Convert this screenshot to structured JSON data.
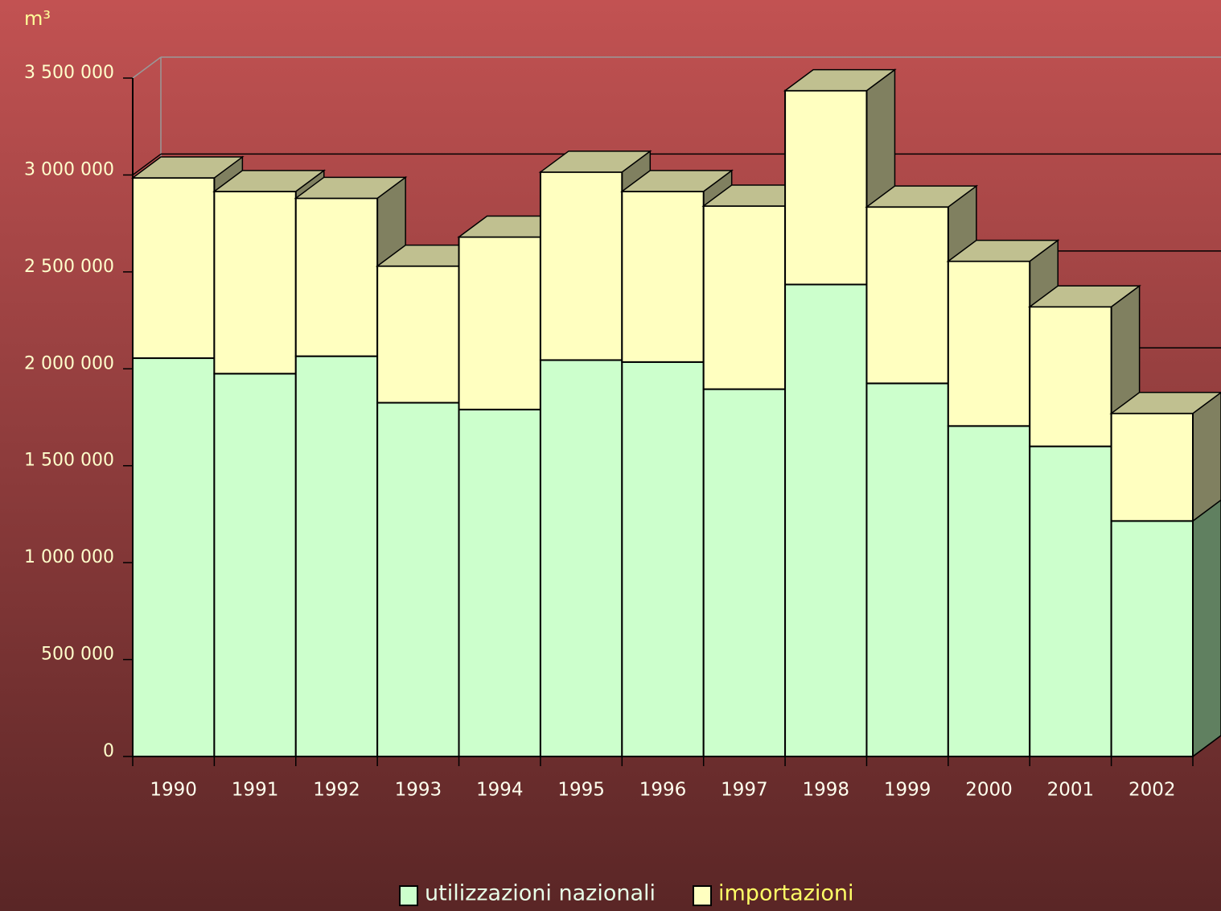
{
  "chart_data": {
    "type": "bar3d_stacked",
    "y_label": "m³",
    "categories": [
      "1990",
      "1991",
      "1992",
      "1993",
      "1994",
      "1995",
      "1996",
      "1997",
      "1998",
      "1999",
      "2000",
      "2001",
      "2002"
    ],
    "series": [
      {
        "name": "utilizzazioni nazionali",
        "color": "#ccffcc",
        "side_color": "#608060",
        "values": [
          2055000,
          1975000,
          2065000,
          1825000,
          1790000,
          2045000,
          2035000,
          1895000,
          2435000,
          1925000,
          1705000,
          1600000,
          1215000
        ]
      },
      {
        "name": "importazioni",
        "color": "#ffffc0",
        "side_color": "#808060",
        "values": [
          930000,
          940000,
          815000,
          705000,
          890000,
          970000,
          880000,
          945000,
          1000000,
          910000,
          850000,
          720000,
          555000
        ]
      }
    ],
    "top_color": "#c0c090",
    "ylim": [
      0,
      3500000
    ],
    "yticks": [
      0,
      {
        "value": 500000,
        "label": "500 000"
      },
      {
        "value": 1000000,
        "label": "1 000 000"
      },
      {
        "value": 1500000,
        "label": "1 500 000"
      },
      {
        "value": 2000000,
        "label": "2 000 000"
      },
      {
        "value": 2500000,
        "label": "2 500 000"
      },
      {
        "value": 3000000,
        "label": "3 000 000"
      },
      {
        "value": 3500000,
        "label": "3 500 000"
      }
    ],
    "grid": true,
    "legend": "bottom"
  }
}
